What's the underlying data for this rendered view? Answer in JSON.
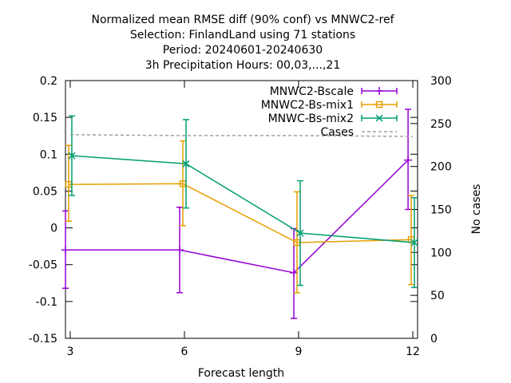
{
  "chart_data": {
    "type": "line",
    "title_lines": [
      "Normalized mean RMSE diff (90% conf) vs MNWC2-ref",
      "Selection: FinlandLand using    71 stations",
      "Period: 20240601-20240630",
      "3h Precipitation   Hours: 00,03,...,21"
    ],
    "xlabel": "Forecast length",
    "ylabel": "",
    "y2label": "No cases",
    "xlim": [
      2.875,
      12.125
    ],
    "ylim": [
      -0.15,
      0.2
    ],
    "y2lim": [
      0,
      300
    ],
    "x_ticks": [
      3,
      6,
      9,
      12
    ],
    "y_ticks": [
      -0.15,
      -0.1,
      -0.05,
      0,
      0.05,
      0.1,
      0.15,
      0.2
    ],
    "y_tick_labels": [
      "-0.15",
      "-0.1",
      "-0.05",
      "0",
      "0.05",
      "0.1",
      "0.15",
      "0.2"
    ],
    "y2_ticks": [
      0,
      50,
      100,
      150,
      200,
      250,
      300
    ],
    "legend_position": "top-right",
    "series": [
      {
        "name": "MNWC2-Bscale",
        "color": "#9400d3",
        "marker": "plus",
        "x": [
          2.875,
          5.875,
          8.875,
          11.875
        ],
        "y": [
          -0.03,
          -0.03,
          -0.061,
          0.092
        ],
        "err_low": [
          -0.082,
          -0.088,
          -0.123,
          0.025
        ],
        "err_high": [
          0.023,
          0.028,
          -0.001,
          0.161
        ]
      },
      {
        "name": "MNWC2-Bs-mix1",
        "color": "#e69f00",
        "marker": "square",
        "x": [
          2.958,
          5.958,
          8.958,
          11.958
        ],
        "y": [
          0.059,
          0.06,
          -0.02,
          -0.016
        ],
        "err_low": [
          0.009,
          0.003,
          -0.088,
          -0.077
        ],
        "err_high": [
          0.112,
          0.118,
          0.049,
          0.044
        ]
      },
      {
        "name": "MNWC-Bs-mix2",
        "color": "#009e73",
        "marker": "cross",
        "x": [
          3.042,
          6.042,
          9.042,
          12.042
        ],
        "y": [
          0.098,
          0.087,
          -0.007,
          -0.02
        ],
        "err_low": [
          0.044,
          0.027,
          -0.078,
          -0.081
        ],
        "err_high": [
          0.152,
          0.147,
          0.064,
          0.041
        ]
      },
      {
        "name": "Cases",
        "color": "#a0a0a0",
        "style": "dashed",
        "axis": "y2",
        "x": [
          3,
          6,
          9,
          12
        ],
        "y": [
          237,
          236,
          236,
          235
        ]
      }
    ]
  }
}
